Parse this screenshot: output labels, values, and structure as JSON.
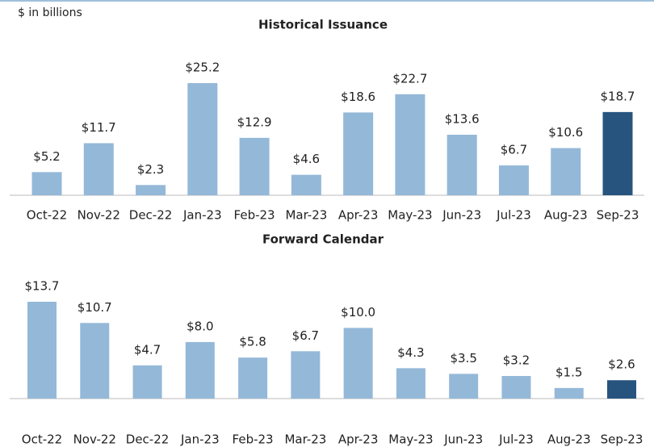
{
  "chart_data": [
    {
      "type": "bar",
      "title": "Historical Issuance",
      "subtitle": "$ in billions",
      "categories": [
        "Oct-22",
        "Nov-22",
        "Dec-22",
        "Jan-23",
        "Feb-23",
        "Mar-23",
        "Apr-23",
        "May-23",
        "Jun-23",
        "Jul-23",
        "Aug-23",
        "Sep-23"
      ],
      "values": [
        5.2,
        11.7,
        2.3,
        25.2,
        12.9,
        4.6,
        18.6,
        22.7,
        13.6,
        6.7,
        10.6,
        18.7
      ],
      "value_labels": [
        "$5.2",
        "$11.7",
        "$2.3",
        "$25.2",
        "$12.9",
        "$4.6",
        "$18.6",
        "$22.7",
        "$13.6",
        "$6.7",
        "$10.6",
        "$18.7"
      ],
      "colors": [
        "#94b8d8",
        "#94b8d8",
        "#94b8d8",
        "#94b8d8",
        "#94b8d8",
        "#94b8d8",
        "#94b8d8",
        "#94b8d8",
        "#94b8d8",
        "#94b8d8",
        "#94b8d8",
        "#27547e"
      ],
      "ylim": [
        0,
        25.2
      ]
    },
    {
      "type": "bar",
      "title": "Forward Calendar",
      "categories": [
        "Oct-22",
        "Nov-22",
        "Dec-22",
        "Jan-23",
        "Feb-23",
        "Mar-23",
        "Apr-23",
        "May-23",
        "Jun-23",
        "Jul-23",
        "Aug-23",
        "Sep-23"
      ],
      "values": [
        13.7,
        10.7,
        4.7,
        8.0,
        5.8,
        6.7,
        10.0,
        4.3,
        3.5,
        3.2,
        1.5,
        2.6
      ],
      "value_labels": [
        "$13.7",
        "$10.7",
        "$4.7",
        "$8.0",
        "$5.8",
        "$6.7",
        "$10.0",
        "$4.3",
        "$3.5",
        "$3.2",
        "$1.5",
        "$2.6"
      ],
      "colors": [
        "#94b8d8",
        "#94b8d8",
        "#94b8d8",
        "#94b8d8",
        "#94b8d8",
        "#94b8d8",
        "#94b8d8",
        "#94b8d8",
        "#94b8d8",
        "#94b8d8",
        "#94b8d8",
        "#27547e"
      ],
      "ylim": [
        0,
        13.7
      ]
    }
  ]
}
